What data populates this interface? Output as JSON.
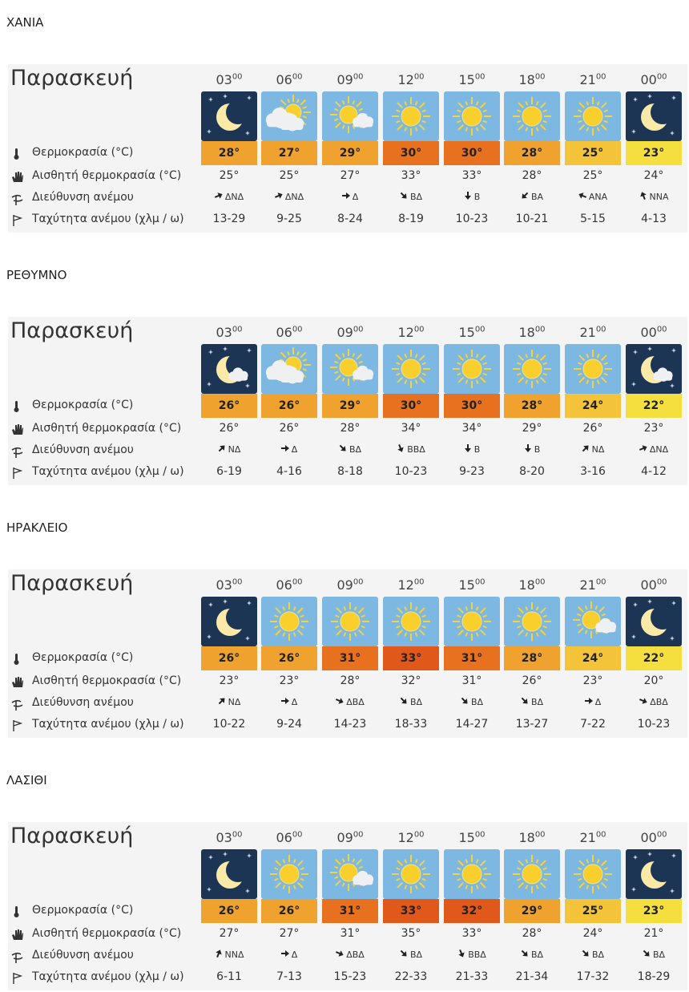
{
  "regions": [
    {
      "name": "ΧΑΝΙΑ",
      "day": "Παρασκευή",
      "times": [
        {
          "hour": "03",
          "minute": "00"
        },
        {
          "hour": "06",
          "minute": "00"
        },
        {
          "hour": "09",
          "minute": "00"
        },
        {
          "hour": "12",
          "minute": "00"
        },
        {
          "hour": "15",
          "minute": "00"
        },
        {
          "hour": "18",
          "minute": "00"
        },
        {
          "hour": "21",
          "minute": "00"
        },
        {
          "hour": "00",
          "minute": "00"
        }
      ],
      "icons": [
        "moon",
        "sun-clouds",
        "sun-cloud",
        "sun",
        "sun",
        "sun",
        "sun",
        "moon"
      ],
      "labels": [
        "Θερμοκρασία (°C)",
        "Αισθητή θερμοκρασία (°C)",
        "Διεύθυνση ανέμου",
        "Ταχύτητα ανέμου (χλμ / ω)"
      ],
      "temperature": [
        "28°",
        "27°",
        "29°",
        "30°",
        "30°",
        "28°",
        "25°",
        "23°"
      ],
      "feels_like": [
        "25°",
        "25°",
        "27°",
        "33°",
        "33°",
        "28°",
        "25°",
        "24°"
      ],
      "wind_direction": [
        "ΔΝΔ",
        "ΔΝΔ",
        "Δ",
        "ΒΔ",
        "Β",
        "ΒΑ",
        "ΑΝΑ",
        "ΝΝΑ"
      ],
      "wind_speed": [
        "13-29",
        "9-25",
        "8-24",
        "8-19",
        "10-23",
        "10-21",
        "5-15",
        "4-13"
      ]
    },
    {
      "name": "ΡΕΘΥΜΝΟ",
      "day": "Παρασκευή",
      "times": [
        {
          "hour": "03",
          "minute": "00"
        },
        {
          "hour": "06",
          "minute": "00"
        },
        {
          "hour": "09",
          "minute": "00"
        },
        {
          "hour": "12",
          "minute": "00"
        },
        {
          "hour": "15",
          "minute": "00"
        },
        {
          "hour": "18",
          "minute": "00"
        },
        {
          "hour": "21",
          "minute": "00"
        },
        {
          "hour": "00",
          "minute": "00"
        }
      ],
      "icons": [
        "moon-cloud",
        "sun-clouds",
        "sun-cloud",
        "sun",
        "sun",
        "sun",
        "sun",
        "moon-cloud"
      ],
      "labels": [
        "Θερμοκρασία (°C)",
        "Αισθητή θερμοκρασία (°C)",
        "Διεύθυνση ανέμου",
        "Ταχύτητα ανέμου (χλμ / ω)"
      ],
      "temperature": [
        "26°",
        "26°",
        "29°",
        "30°",
        "30°",
        "28°",
        "24°",
        "22°"
      ],
      "feels_like": [
        "26°",
        "26°",
        "28°",
        "34°",
        "34°",
        "29°",
        "26°",
        "23°"
      ],
      "wind_direction": [
        "ΝΔ",
        "Δ",
        "ΒΔ",
        "ΒΒΔ",
        "Β",
        "Β",
        "ΝΔ",
        "ΔΝΔ"
      ],
      "wind_speed": [
        "6-19",
        "4-16",
        "8-18",
        "10-23",
        "9-23",
        "8-20",
        "3-16",
        "4-12"
      ]
    },
    {
      "name": "ΗΡΑΚΛΕΙΟ",
      "day": "Παρασκευή",
      "times": [
        {
          "hour": "03",
          "minute": "00"
        },
        {
          "hour": "06",
          "minute": "00"
        },
        {
          "hour": "09",
          "minute": "00"
        },
        {
          "hour": "12",
          "minute": "00"
        },
        {
          "hour": "15",
          "minute": "00"
        },
        {
          "hour": "18",
          "minute": "00"
        },
        {
          "hour": "21",
          "minute": "00"
        },
        {
          "hour": "00",
          "minute": "00"
        }
      ],
      "icons": [
        "moon",
        "sun",
        "sun",
        "sun",
        "sun",
        "sun",
        "sun-cloud",
        "moon"
      ],
      "labels": [
        "Θερμοκρασία (°C)",
        "Αισθητή θερμοκρασία (°C)",
        "Διεύθυνση ανέμου",
        "Ταχύτητα ανέμου (χλμ / ω)"
      ],
      "temperature": [
        "26°",
        "26°",
        "31°",
        "33°",
        "31°",
        "28°",
        "24°",
        "22°"
      ],
      "feels_like": [
        "23°",
        "23°",
        "28°",
        "32°",
        "31°",
        "26°",
        "23°",
        "20°"
      ],
      "wind_direction": [
        "ΝΔ",
        "Δ",
        "ΔΒΔ",
        "ΒΔ",
        "ΒΔ",
        "ΒΔ",
        "Δ",
        "ΔΒΔ"
      ],
      "wind_speed": [
        "10-22",
        "9-24",
        "14-23",
        "18-33",
        "14-27",
        "13-27",
        "7-22",
        "10-23"
      ]
    },
    {
      "name": "ΛΑΣΙΘΙ",
      "day": "Παρασκευή",
      "times": [
        {
          "hour": "03",
          "minute": "00"
        },
        {
          "hour": "06",
          "minute": "00"
        },
        {
          "hour": "09",
          "minute": "00"
        },
        {
          "hour": "12",
          "minute": "00"
        },
        {
          "hour": "15",
          "minute": "00"
        },
        {
          "hour": "18",
          "minute": "00"
        },
        {
          "hour": "21",
          "minute": "00"
        },
        {
          "hour": "00",
          "minute": "00"
        }
      ],
      "icons": [
        "moon",
        "sun",
        "sun-cloud",
        "sun",
        "sun",
        "sun",
        "sun",
        "moon"
      ],
      "labels": [
        "Θερμοκρασία (°C)",
        "Αισθητή θερμοκρασία (°C)",
        "Διεύθυνση ανέμου",
        "Ταχύτητα ανέμου (χλμ / ω)"
      ],
      "temperature": [
        "26°",
        "26°",
        "31°",
        "33°",
        "32°",
        "29°",
        "25°",
        "23°"
      ],
      "feels_like": [
        "27°",
        "27°",
        "31°",
        "35°",
        "33°",
        "28°",
        "24°",
        "21°"
      ],
      "wind_direction": [
        "ΝΝΔ",
        "Δ",
        "ΔΒΔ",
        "ΒΔ",
        "ΒΒΔ",
        "ΒΔ",
        "ΒΔ",
        "ΒΔ"
      ],
      "wind_speed": [
        "6-11",
        "7-13",
        "15-23",
        "22-33",
        "21-33",
        "21-34",
        "17-32",
        "18-29"
      ]
    }
  ]
}
